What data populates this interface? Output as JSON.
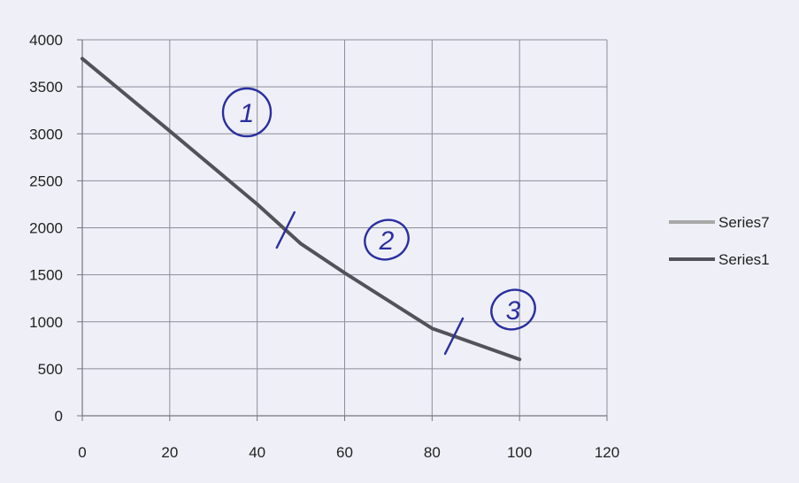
{
  "chart_data": {
    "type": "line",
    "title": "",
    "xlabel": "",
    "ylabel": "",
    "xlim": [
      0,
      120
    ],
    "ylim": [
      0,
      4000
    ],
    "x_ticks": [
      0,
      20,
      40,
      60,
      80,
      100,
      120
    ],
    "y_ticks": [
      0,
      500,
      1000,
      1500,
      2000,
      2500,
      3000,
      3500,
      4000
    ],
    "grid": true,
    "legend_position": "right",
    "series": [
      {
        "name": "Series7",
        "color": "#a8a8a8",
        "x": [],
        "y": []
      },
      {
        "name": "Series1",
        "color": "#525258",
        "x": [
          0,
          20,
          40,
          50,
          60,
          80,
          100
        ],
        "y": [
          3800,
          3030,
          2250,
          1830,
          1520,
          930,
          600
        ]
      }
    ],
    "annotations": [
      {
        "label": "1",
        "color": "#2a2f9e"
      },
      {
        "label": "2",
        "color": "#2a2f9e"
      },
      {
        "label": "3",
        "color": "#2a2f9e"
      }
    ],
    "segment_marks_at_x": [
      46.5,
      85
    ]
  }
}
